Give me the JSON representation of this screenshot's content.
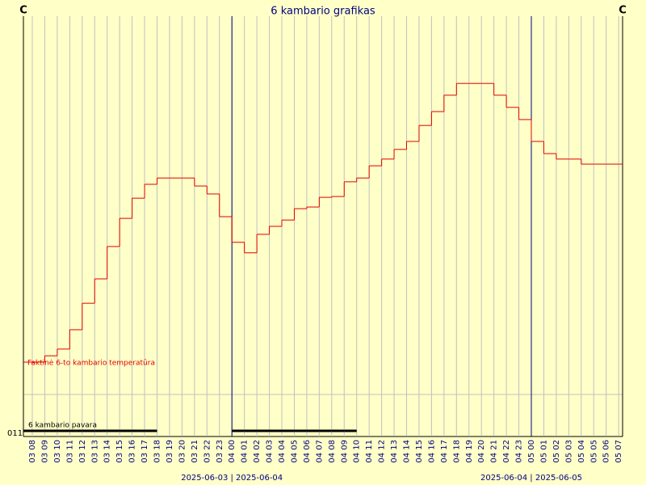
{
  "chart_data": {
    "type": "line",
    "title": "6 kambario grafikas",
    "left_unit": "C",
    "right_unit": "C",
    "y_axis_label": "011",
    "categories": [
      "03 08",
      "03 09",
      "03 10",
      "03 11",
      "03 12",
      "03 13",
      "03 14",
      "03 15",
      "03 16",
      "03 17",
      "03 18",
      "03 19",
      "03 20",
      "03 21",
      "03 22",
      "03 23",
      "04 00",
      "04 01",
      "04 02",
      "04 03",
      "04 04",
      "04 05",
      "04 06",
      "04 07",
      "04 08",
      "04 09",
      "04 10",
      "04 11",
      "04 12",
      "04 13",
      "04 14",
      "04 15",
      "04 16",
      "04 17",
      "04 18",
      "04 19",
      "04 20",
      "04 21",
      "04 22",
      "04 23",
      "05 00",
      "05 01",
      "05 02",
      "05 03",
      "05 04",
      "05 05",
      "05 06",
      "05 07"
    ],
    "ylim": [
      0,
      100
    ],
    "series": [
      {
        "name": "Faktinė 6-to kambario temperatūra",
        "color": "#e00000",
        "values": [
          17.7,
          19.2,
          20.8,
          25.4,
          31.7,
          37.5,
          45.2,
          51.9,
          56.7,
          60,
          61.5,
          61.5,
          61.5,
          59.6,
          57.7,
          52.3,
          46.2,
          43.7,
          48.1,
          50,
          51.5,
          54.2,
          54.6,
          56.9,
          57.1,
          60.6,
          61.5,
          64.4,
          66,
          68.3,
          70.2,
          74,
          77.3,
          81.2,
          84,
          84,
          84,
          81.2,
          78.3,
          75.4,
          70.2,
          67.3,
          66,
          66,
          64.8,
          64.8,
          64.8,
          64.8
        ]
      },
      {
        "name": "6 kambario pavara",
        "color": "#000000",
        "values": [
          1,
          1,
          1,
          1,
          1,
          1,
          1,
          1,
          1,
          1,
          0,
          0,
          0,
          0,
          0,
          0,
          1,
          1,
          1,
          1,
          1,
          1,
          1,
          1,
          1,
          1,
          0,
          0,
          0,
          0,
          0,
          0,
          0,
          0,
          0,
          0,
          0,
          0,
          0,
          0,
          0,
          0,
          0,
          0,
          0,
          0,
          0,
          0
        ]
      }
    ],
    "day_labels": [
      {
        "label": "2025-06-03 | 2025-06-04",
        "at": "04 00"
      },
      {
        "label": "2025-06-04 | 2025-06-05",
        "at": "05 00"
      }
    ],
    "grid": true
  }
}
